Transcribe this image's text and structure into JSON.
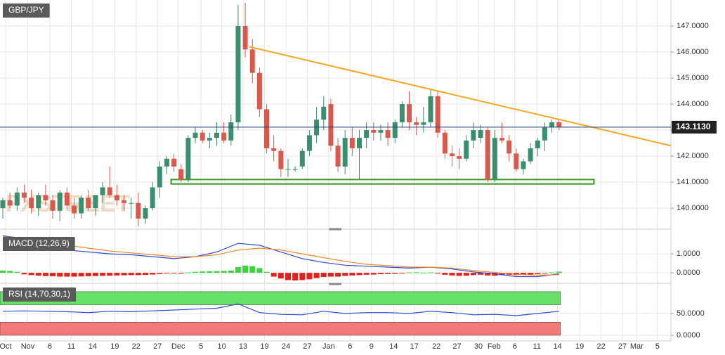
{
  "chart_data": [
    {
      "type": "candlestick",
      "title": "GBP/JPY",
      "watermark": "FXSTREET",
      "up_color": "#3a8f6e",
      "down_color": "#d9594c",
      "ylim": [
        139.3,
        148.0
      ],
      "yticks": [
        {
          "value": 140,
          "label": "140.0000"
        },
        {
          "value": 141,
          "label": "141.0000"
        },
        {
          "value": 142,
          "label": "142.0000"
        },
        {
          "value": 143,
          "label": "143.0000"
        },
        {
          "value": 144,
          "label": "144.0000"
        },
        {
          "value": 145,
          "label": "145.0000"
        },
        {
          "value": 146,
          "label": "146.0000"
        },
        {
          "value": 147,
          "label": "147.0000"
        }
      ],
      "last_price": 143.113,
      "last_price_label": "143.1130",
      "trendline": {
        "color": "#f5a623",
        "x": [
          34.6,
          93.7
        ],
        "y": [
          146.2,
          142.4
        ]
      },
      "support_box": {
        "color": "#3c9a1e",
        "x": [
          23.6,
          82.9
        ],
        "y": [
          140.93,
          141.1
        ]
      },
      "open": [
        140.0,
        140.3,
        140.1,
        140.6,
        140.4,
        140.0,
        140.5,
        140.3,
        139.9,
        140.6,
        140.1,
        139.8,
        140.4,
        140.0,
        140.5,
        140.8,
        140.5,
        140.3,
        140.2,
        140.2,
        139.6,
        140.0,
        140.8,
        141.6,
        141.9,
        141.5,
        141.1,
        142.7,
        142.9,
        142.6,
        142.7,
        142.9,
        142.6,
        143.3,
        147.0,
        146.1,
        145.2,
        143.8,
        142.3,
        142.2,
        141.5,
        141.5,
        141.6,
        142.2,
        142.8,
        143.4,
        144.0,
        142.4,
        141.6,
        142.7,
        142.3,
        142.7,
        143.0,
        142.9,
        143.0,
        142.7,
        143.3,
        144.0,
        143.3,
        143.2,
        143.3,
        144.3,
        142.9,
        142.1,
        142.0,
        141.9,
        142.6,
        142.7,
        143.0,
        141.1,
        142.7,
        142.6,
        142.1,
        141.5,
        141.8,
        142.3,
        142.6,
        143.1,
        143.3
      ],
      "high": [
        140.4,
        140.6,
        140.8,
        140.9,
        140.7,
        140.6,
        140.9,
        140.5,
        140.7,
        140.8,
        140.4,
        140.5,
        140.7,
        140.5,
        141.0,
        141.6,
        140.9,
        140.5,
        140.4,
        140.6,
        140.1,
        141.0,
        141.8,
        142.0,
        142.1,
        141.7,
        142.8,
        143.1,
        143.0,
        142.9,
        143.3,
        143.3,
        143.6,
        147.8,
        147.9,
        146.5,
        145.4,
        144.0,
        142.8,
        142.3,
        141.9,
        141.6,
        142.3,
        143.0,
        143.9,
        144.3,
        144.2,
        142.7,
        143.0,
        143.1,
        143.0,
        143.3,
        143.3,
        143.2,
        143.3,
        143.4,
        144.1,
        144.5,
        143.5,
        143.9,
        144.6,
        144.5,
        143.0,
        142.4,
        142.3,
        142.8,
        143.3,
        143.2,
        143.1,
        143.0,
        143.3,
        142.8,
        142.3,
        141.9,
        142.5,
        142.7,
        143.3,
        143.4,
        143.4
      ],
      "low": [
        139.6,
        140.0,
        139.9,
        140.2,
        139.8,
        139.7,
        140.1,
        139.6,
        139.5,
        139.9,
        139.6,
        139.6,
        139.9,
        139.7,
        140.2,
        140.4,
        140.1,
        139.9,
        139.6,
        139.3,
        139.4,
        139.9,
        140.4,
        141.3,
        141.4,
        141.0,
        141.0,
        142.5,
        142.5,
        142.3,
        142.4,
        142.5,
        142.4,
        143.0,
        145.8,
        144.8,
        143.5,
        142.1,
        141.8,
        141.2,
        141.2,
        141.4,
        141.5,
        142.0,
        142.5,
        143.0,
        142.2,
        141.4,
        141.3,
        142.0,
        141.1,
        142.3,
        142.6,
        142.6,
        142.4,
        142.5,
        143.1,
        143.0,
        142.8,
        142.9,
        143.1,
        142.7,
        141.9,
        141.6,
        141.5,
        141.8,
        142.3,
        142.5,
        141.0,
        141.0,
        142.5,
        141.8,
        141.4,
        141.3,
        141.7,
        142.0,
        142.2,
        142.9,
        143.0
      ],
      "close": [
        140.3,
        140.1,
        140.6,
        140.4,
        140.0,
        140.5,
        140.3,
        139.9,
        140.6,
        140.1,
        139.8,
        140.4,
        140.0,
        140.5,
        140.8,
        140.5,
        140.3,
        140.2,
        140.2,
        139.6,
        140.0,
        140.8,
        141.6,
        141.9,
        141.6,
        141.1,
        142.7,
        142.9,
        142.6,
        142.7,
        142.9,
        142.6,
        143.3,
        147.0,
        146.1,
        145.2,
        143.8,
        142.3,
        142.2,
        141.5,
        141.5,
        141.5,
        142.2,
        142.8,
        143.4,
        143.9,
        142.4,
        141.6,
        142.7,
        142.3,
        142.7,
        143.0,
        142.9,
        143.0,
        142.7,
        143.3,
        144.0,
        143.3,
        143.2,
        143.3,
        144.3,
        142.9,
        142.1,
        142.0,
        141.9,
        142.6,
        143.0,
        143.0,
        141.1,
        142.7,
        142.6,
        142.1,
        141.5,
        141.8,
        142.3,
        142.6,
        143.1,
        143.3,
        143.11
      ]
    },
    {
      "type": "macd",
      "title": "MACD (12,26,9)",
      "ylim": [
        -0.44,
        2.04
      ],
      "yticks": [
        {
          "value": 1,
          "label": "1.0000"
        },
        {
          "value": 0,
          "label": "0.0000"
        }
      ],
      "hist_up_color": "#3fd43f",
      "hist_down_color": "#e5201c",
      "histogram": [
        0.12,
        0.1,
        0.05,
        -0.08,
        -0.12,
        -0.15,
        -0.17,
        -0.18,
        -0.2,
        -0.2,
        -0.2,
        -0.19,
        -0.18,
        -0.17,
        -0.16,
        -0.15,
        -0.14,
        -0.13,
        -0.12,
        -0.12,
        -0.11,
        -0.09,
        -0.06,
        -0.03,
        -0.02,
        -0.04,
        0.02,
        0.05,
        0.07,
        0.08,
        0.09,
        0.1,
        0.12,
        0.3,
        0.38,
        0.35,
        0.25,
        0.05,
        -0.2,
        -0.3,
        -0.38,
        -0.4,
        -0.38,
        -0.34,
        -0.28,
        -0.22,
        -0.2,
        -0.2,
        -0.16,
        -0.14,
        -0.12,
        -0.1,
        -0.09,
        -0.07,
        -0.06,
        -0.05,
        -0.02,
        0.02,
        0.03,
        0.01,
        0.02,
        -0.04,
        -0.1,
        -0.14,
        -0.16,
        -0.15,
        -0.12,
        -0.1,
        -0.14,
        -0.15,
        -0.12,
        -0.1,
        -0.12,
        -0.11,
        -0.09,
        -0.06,
        -0.03,
        0.02,
        0.06
      ],
      "x": [
        0,
        3,
        6,
        9,
        12,
        15,
        18,
        21,
        24,
        27,
        30,
        33,
        36,
        39,
        42,
        45,
        48,
        51,
        54,
        57,
        60,
        63,
        66,
        69,
        72,
        75,
        78
      ],
      "series": [
        {
          "name": "MACD",
          "color": "#2e4bd6",
          "values": [
            1.95,
            1.8,
            1.5,
            1.2,
            1.1,
            1.0,
            0.95,
            0.85,
            0.75,
            0.85,
            1.1,
            1.55,
            1.45,
            1.1,
            0.75,
            0.55,
            0.4,
            0.35,
            0.3,
            0.25,
            0.3,
            0.2,
            0.05,
            -0.05,
            -0.2,
            -0.2,
            -0.05
          ]
        },
        {
          "name": "Signal",
          "color": "#f08a24",
          "values": [
            1.9,
            1.85,
            1.65,
            1.45,
            1.3,
            1.15,
            1.05,
            0.95,
            0.85,
            0.85,
            0.95,
            1.2,
            1.3,
            1.2,
            1.0,
            0.8,
            0.6,
            0.45,
            0.38,
            0.3,
            0.3,
            0.25,
            0.12,
            0.02,
            -0.08,
            -0.12,
            -0.1
          ]
        }
      ]
    },
    {
      "type": "rsi",
      "title": "RSI (14,70,30,1)",
      "ylim": [
        -13,
        116
      ],
      "yticks": [
        {
          "value": 50,
          "label": "50.0000"
        },
        {
          "value": 0,
          "label": "0.0000"
        }
      ],
      "overbought": [
        70,
        100
      ],
      "oversold": [
        0,
        30
      ],
      "overbought_color": "#66e066",
      "oversold_color": "#f47a7a",
      "x": [
        0,
        3,
        6,
        9,
        12,
        15,
        18,
        21,
        24,
        27,
        30,
        33,
        36,
        39,
        42,
        45,
        48,
        51,
        54,
        57,
        60,
        63,
        66,
        69,
        72,
        75,
        78
      ],
      "series": [
        {
          "name": "RSI",
          "color": "#2e4bd6",
          "values": [
            55,
            56,
            55,
            54,
            52,
            55,
            54,
            56,
            58,
            60,
            62,
            72,
            52,
            48,
            47,
            55,
            50,
            52,
            52,
            50,
            55,
            52,
            47,
            48,
            45,
            50,
            55
          ]
        }
      ],
      "xticks": [
        {
          "value": 0.4,
          "label": "Oct"
        },
        {
          "value": 3.5,
          "label": "Nov"
        },
        {
          "value": 6.6,
          "label": "6"
        },
        {
          "value": 9.6,
          "label": "11"
        },
        {
          "value": 12.6,
          "label": "14"
        },
        {
          "value": 15.7,
          "label": "19"
        },
        {
          "value": 18.7,
          "label": "22"
        },
        {
          "value": 21.7,
          "label": "27"
        },
        {
          "value": 24.6,
          "label": "Dec"
        },
        {
          "value": 27.8,
          "label": "5"
        },
        {
          "value": 30.7,
          "label": "10"
        },
        {
          "value": 33.7,
          "label": "13"
        },
        {
          "value": 36.7,
          "label": "19"
        },
        {
          "value": 39.7,
          "label": "24"
        },
        {
          "value": 42.7,
          "label": "27"
        },
        {
          "value": 45.7,
          "label": "Jan"
        },
        {
          "value": 48.7,
          "label": "6"
        },
        {
          "value": 51.7,
          "label": "9"
        },
        {
          "value": 54.8,
          "label": "14"
        },
        {
          "value": 57.7,
          "label": "17"
        },
        {
          "value": 60.8,
          "label": "22"
        },
        {
          "value": 63.7,
          "label": "27"
        },
        {
          "value": 66.7,
          "label": "30"
        },
        {
          "value": 68.9,
          "label": "Feb"
        },
        {
          "value": 71.8,
          "label": "6"
        },
        {
          "value": 74.9,
          "label": "11"
        },
        {
          "value": 77.8,
          "label": "14"
        },
        {
          "value": 80.9,
          "label": "19"
        },
        {
          "value": 83.9,
          "label": "22"
        },
        {
          "value": 86.9,
          "label": "27"
        },
        {
          "value": 88.9,
          "label": "Mar"
        },
        {
          "value": 91.8,
          "label": "5"
        }
      ]
    }
  ]
}
